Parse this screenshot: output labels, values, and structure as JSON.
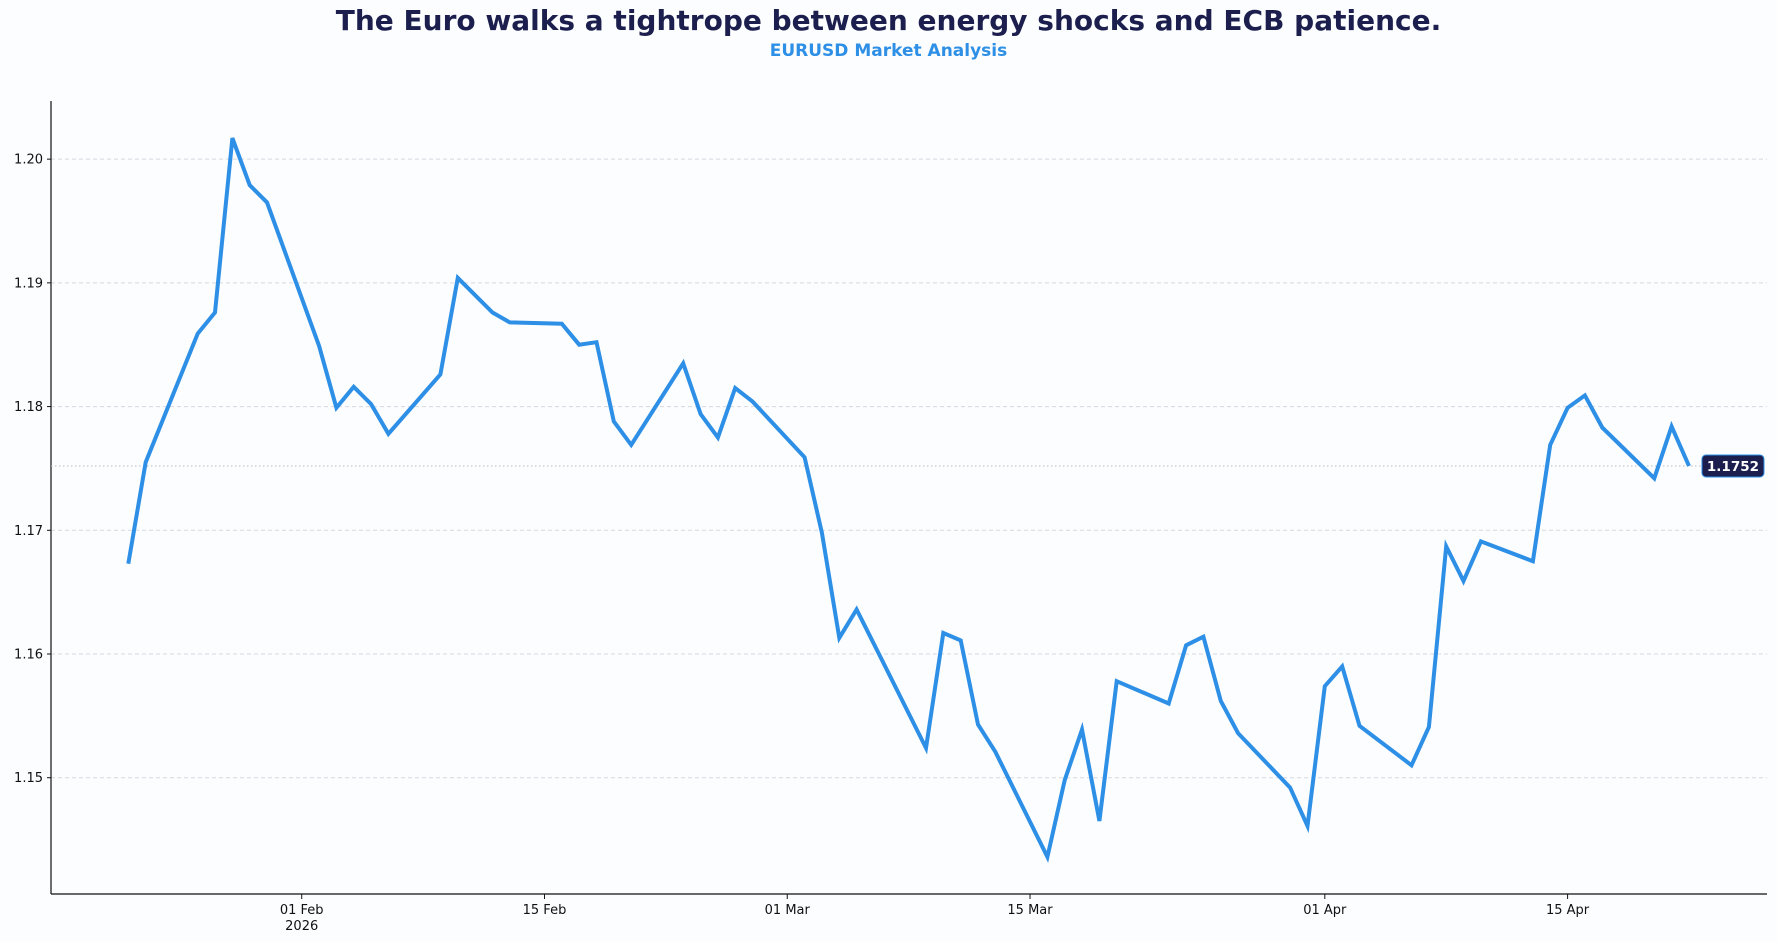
{
  "chart_data": {
    "type": "line",
    "title": "The Euro walks a tightrope between energy shocks and ECB patience.",
    "subtitle": "EURUSD Market Analysis",
    "xlabel": "",
    "ylabel": "",
    "grid": "horizontal dashed",
    "line_color": "#2d8fe6",
    "label_bg_color": "#1c1f4d",
    "xlim": [
      "2026-01-17T13:00",
      "2026-04-26T12:00"
    ],
    "ylim": [
      1.1406,
      1.2047
    ],
    "yticks": [
      1.15,
      1.16,
      1.17,
      1.18,
      1.19,
      1.2
    ],
    "ytick_labels": [
      "1.15",
      "1.16",
      "1.17",
      "1.18",
      "1.19",
      "1.20"
    ],
    "xticks": [
      "2026-02-01",
      "2026-02-15",
      "2026-03-01",
      "2026-03-15",
      "2026-04-01",
      "2026-04-15"
    ],
    "xtick_labels": [
      "01 Feb",
      "15 Feb",
      "01 Mar",
      "15 Mar",
      "01 Apr",
      "15 Apr"
    ],
    "xtick_year": "2026",
    "last_value_label": "1.1752",
    "last_value": 1.1752,
    "x": [
      "2026-01-22",
      "2026-01-23",
      "2026-01-26",
      "2026-01-27",
      "2026-01-28",
      "2026-01-29",
      "2026-01-30",
      "2026-02-02",
      "2026-02-03",
      "2026-02-04",
      "2026-02-05",
      "2026-02-06",
      "2026-02-09",
      "2026-02-10",
      "2026-02-11",
      "2026-02-12",
      "2026-02-13",
      "2026-02-16",
      "2026-02-17",
      "2026-02-18",
      "2026-02-19",
      "2026-02-20",
      "2026-02-23",
      "2026-02-24",
      "2026-02-25",
      "2026-02-26",
      "2026-02-27",
      "2026-03-02",
      "2026-03-03",
      "2026-03-04",
      "2026-03-05",
      "2026-03-06",
      "2026-03-09",
      "2026-03-10",
      "2026-03-11",
      "2026-03-12",
      "2026-03-13",
      "2026-03-16",
      "2026-03-17",
      "2026-03-18",
      "2026-03-19",
      "2026-03-20",
      "2026-03-23",
      "2026-03-24",
      "2026-03-25",
      "2026-03-26",
      "2026-03-27",
      "2026-03-30",
      "2026-03-31",
      "2026-04-01",
      "2026-04-02",
      "2026-04-03",
      "2026-04-06",
      "2026-04-07",
      "2026-04-08",
      "2026-04-09",
      "2026-04-10",
      "2026-04-13",
      "2026-04-14",
      "2026-04-15",
      "2026-04-16",
      "2026-04-17",
      "2026-04-20",
      "2026-04-21",
      "2026-04-22"
    ],
    "y": [
      1.1673,
      1.1755,
      1.1859,
      1.1876,
      1.2017,
      1.1979,
      1.1965,
      1.1849,
      1.1799,
      1.1816,
      1.1802,
      1.1778,
      1.1826,
      1.1904,
      1.189,
      1.1876,
      1.1868,
      1.1867,
      1.185,
      1.1852,
      1.1788,
      1.1769,
      1.1835,
      1.1794,
      1.1775,
      1.1815,
      1.1804,
      1.1759,
      1.1698,
      1.1613,
      1.1636,
      1.1608,
      1.1524,
      1.1617,
      1.1611,
      1.1543,
      1.1521,
      1.1436,
      1.1498,
      1.1539,
      1.1465,
      1.1578,
      1.156,
      1.1607,
      1.1614,
      1.1562,
      1.1536,
      1.1492,
      1.1461,
      1.1574,
      1.159,
      1.1542,
      1.151,
      1.1541,
      1.1687,
      1.1659,
      1.1691,
      1.1675,
      1.1769,
      1.1799,
      1.1809,
      1.1783,
      1.1742,
      1.1784,
      1.1752
    ]
  }
}
